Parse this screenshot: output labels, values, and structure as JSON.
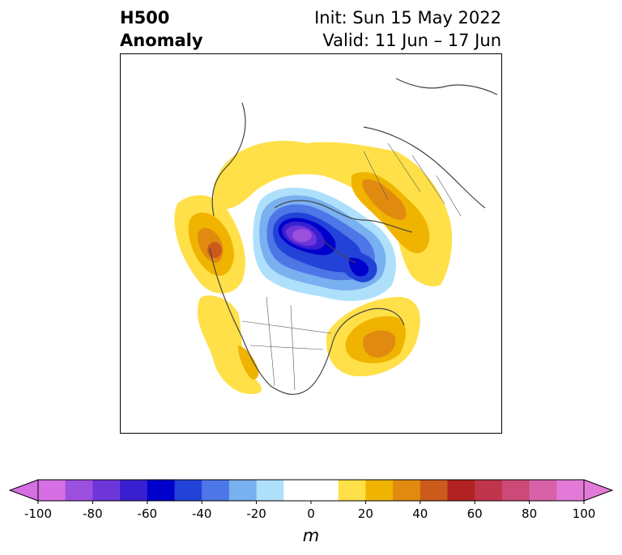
{
  "title": {
    "variable_line1": "H500",
    "variable_line2": "Anomaly",
    "init": "Init: Sun 15 May 2022",
    "valid": "Valid: 11 Jun – 17 Jun"
  },
  "colorbar": {
    "unit": "m",
    "ticks": [
      "-100",
      "-80",
      "-60",
      "-40",
      "-20",
      "0",
      "20",
      "40",
      "60",
      "80",
      "100"
    ],
    "levels": [
      -100,
      -90,
      -80,
      -70,
      -60,
      -50,
      -40,
      -30,
      -20,
      -10,
      10,
      20,
      30,
      40,
      50,
      60,
      70,
      80,
      90,
      100
    ],
    "colors": [
      "#d66ee4",
      "#9c50de",
      "#6e36d9",
      "#3a1fd0",
      "#0000cc",
      "#2342d8",
      "#4d76e6",
      "#78b0f0",
      "#aee0fb",
      "#ffffff",
      "#ffe048",
      "#f0b400",
      "#e08b10",
      "#cc5a1a",
      "#b22222",
      "#c0344c",
      "#cc4a78",
      "#d862a8",
      "#e47ad8"
    ],
    "extend_low_color": "#d66ee4",
    "extend_high_color": "#e47ad8"
  },
  "map": {
    "projection": "north-polar-stereographic",
    "anomaly_features": [
      {
        "region": "Arctic / Canadian Arctic Archipelago",
        "sign": "negative",
        "peak_m": -90
      },
      {
        "region": "Gulf of Alaska / NE Pacific",
        "sign": "positive",
        "peak_m": 45
      },
      {
        "region": "Western United States",
        "sign": "positive",
        "peak_m": 20
      },
      {
        "region": "Northwest Atlantic / Newfoundland",
        "sign": "positive",
        "peak_m": 45
      },
      {
        "region": "Western Russia / Scandinavia",
        "sign": "positive",
        "peak_m": 40
      },
      {
        "region": "Greenland / North Atlantic",
        "sign": "positive",
        "peak_m": 15
      }
    ]
  }
}
